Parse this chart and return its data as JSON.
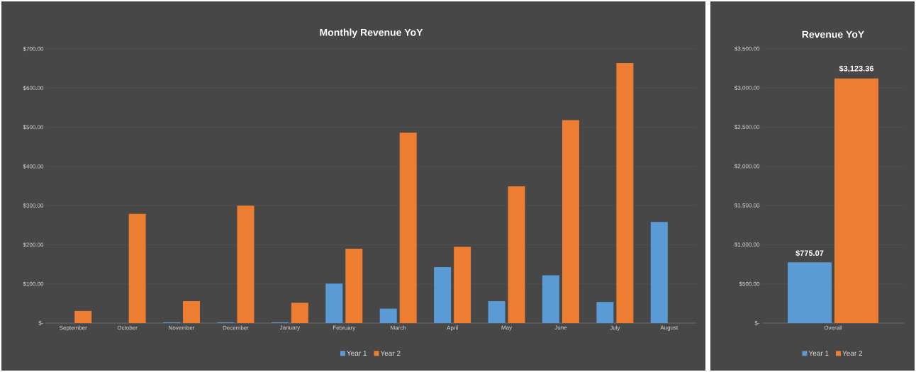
{
  "chart_data": [
    {
      "type": "bar",
      "title": "Monthly  Revenue YoY",
      "categories": [
        "September",
        "October",
        "November",
        "December",
        "January",
        "February",
        "March",
        "April",
        "May",
        "June",
        "July",
        "August"
      ],
      "series": [
        {
          "name": "Year 1",
          "color": "#5b9bd5",
          "values": [
            0,
            0,
            2,
            2,
            2,
            101,
            37,
            143,
            56,
            122,
            54,
            258
          ]
        },
        {
          "name": "Year 2",
          "color": "#ed7d31",
          "values": [
            31,
            279,
            56,
            300,
            52,
            190,
            486,
            195,
            349,
            518,
            664,
            0
          ]
        }
      ],
      "ylim": [
        0,
        700
      ],
      "yticks": [
        {
          "value": 0,
          "label": "$-"
        },
        {
          "value": 100,
          "label": "$100.00"
        },
        {
          "value": 200,
          "label": "$200.00"
        },
        {
          "value": 300,
          "label": "$300.00"
        },
        {
          "value": 400,
          "label": "$400.00"
        },
        {
          "value": 500,
          "label": "$500.00"
        },
        {
          "value": 600,
          "label": "$600.00"
        },
        {
          "value": 700,
          "label": "$700.00"
        }
      ],
      "grid": "y",
      "legend": "bottom"
    },
    {
      "type": "bar",
      "title": "Revenue YoY",
      "categories": [
        "Overall"
      ],
      "series": [
        {
          "name": "Year 1",
          "color": "#5b9bd5",
          "values": [
            775.07
          ],
          "value_labels": [
            "$775.07"
          ]
        },
        {
          "name": "Year 2",
          "color": "#ed7d31",
          "values": [
            3123.36
          ],
          "value_labels": [
            "$3,123.36"
          ]
        }
      ],
      "ylim": [
        0,
        3500
      ],
      "yticks": [
        {
          "value": 0,
          "label": "$-"
        },
        {
          "value": 500,
          "label": "$500.00"
        },
        {
          "value": 1000,
          "label": "$1,000.00"
        },
        {
          "value": 1500,
          "label": "$1,500.00"
        },
        {
          "value": 2000,
          "label": "$2,000.00"
        },
        {
          "value": 2500,
          "label": "$2,500.00"
        },
        {
          "value": 3000,
          "label": "$3,000.00"
        },
        {
          "value": 3500,
          "label": "$3,500.00"
        }
      ],
      "grid": "y",
      "legend": "bottom"
    }
  ]
}
